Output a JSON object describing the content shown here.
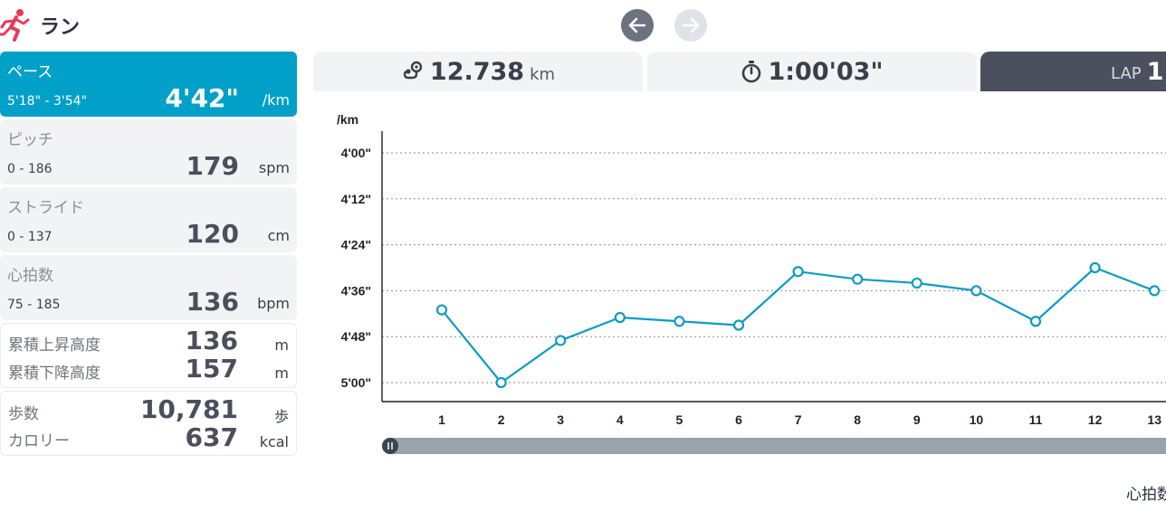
{
  "header": {
    "title": "ラン",
    "icon": "runner-icon",
    "accent": "#e83a5c"
  },
  "nav": {
    "prev_icon": "arrow-left-icon",
    "next_icon": "arrow-right-icon"
  },
  "metrics": {
    "pace": {
      "label": "ペース",
      "range": "5'18\" - 3'54\"",
      "value": "4'42\"",
      "unit": "/km"
    },
    "pitch": {
      "label": "ピッチ",
      "range": "0 - 186",
      "value": "179",
      "unit": "spm"
    },
    "stride": {
      "label": "ストライド",
      "range": "0 - 137",
      "value": "120",
      "unit": "cm"
    },
    "heart_rate": {
      "label": "心拍数",
      "range": "75 - 185",
      "value": "136",
      "unit": "bpm"
    },
    "elevation": {
      "ascent_label": "累積上昇高度",
      "ascent_value": "136",
      "ascent_unit": "m",
      "descent_label": "累積下降高度",
      "descent_value": "157",
      "descent_unit": "m"
    },
    "steps": {
      "steps_label": "歩数",
      "steps_value": "10,781",
      "steps_unit": "歩",
      "calories_label": "カロリー",
      "calories_value": "637",
      "calories_unit": "kcal"
    }
  },
  "tabs": {
    "distance": {
      "icon": "route-icon",
      "value": "12.738",
      "unit": "km"
    },
    "time": {
      "icon": "stopwatch-icon",
      "value": "1:00'03\""
    },
    "lap": {
      "label": "LAP",
      "value": "1"
    }
  },
  "chart_data": {
    "type": "line",
    "ylabel": "/km",
    "x": [
      1,
      2,
      3,
      4,
      5,
      6,
      7,
      8,
      9,
      10,
      11,
      12,
      13
    ],
    "y_seconds": [
      281,
      300,
      289,
      283,
      284,
      285,
      271,
      273,
      274,
      276,
      284,
      270,
      276
    ],
    "yticks": [
      "4'00\"",
      "4'12\"",
      "4'24\"",
      "4'36\"",
      "4'48\"",
      "5'00\""
    ],
    "ylim_seconds": [
      240,
      300
    ],
    "y_inverted": true,
    "grid": true,
    "color": "#0e9bc2"
  },
  "footer": {
    "text": "心拍数"
  }
}
